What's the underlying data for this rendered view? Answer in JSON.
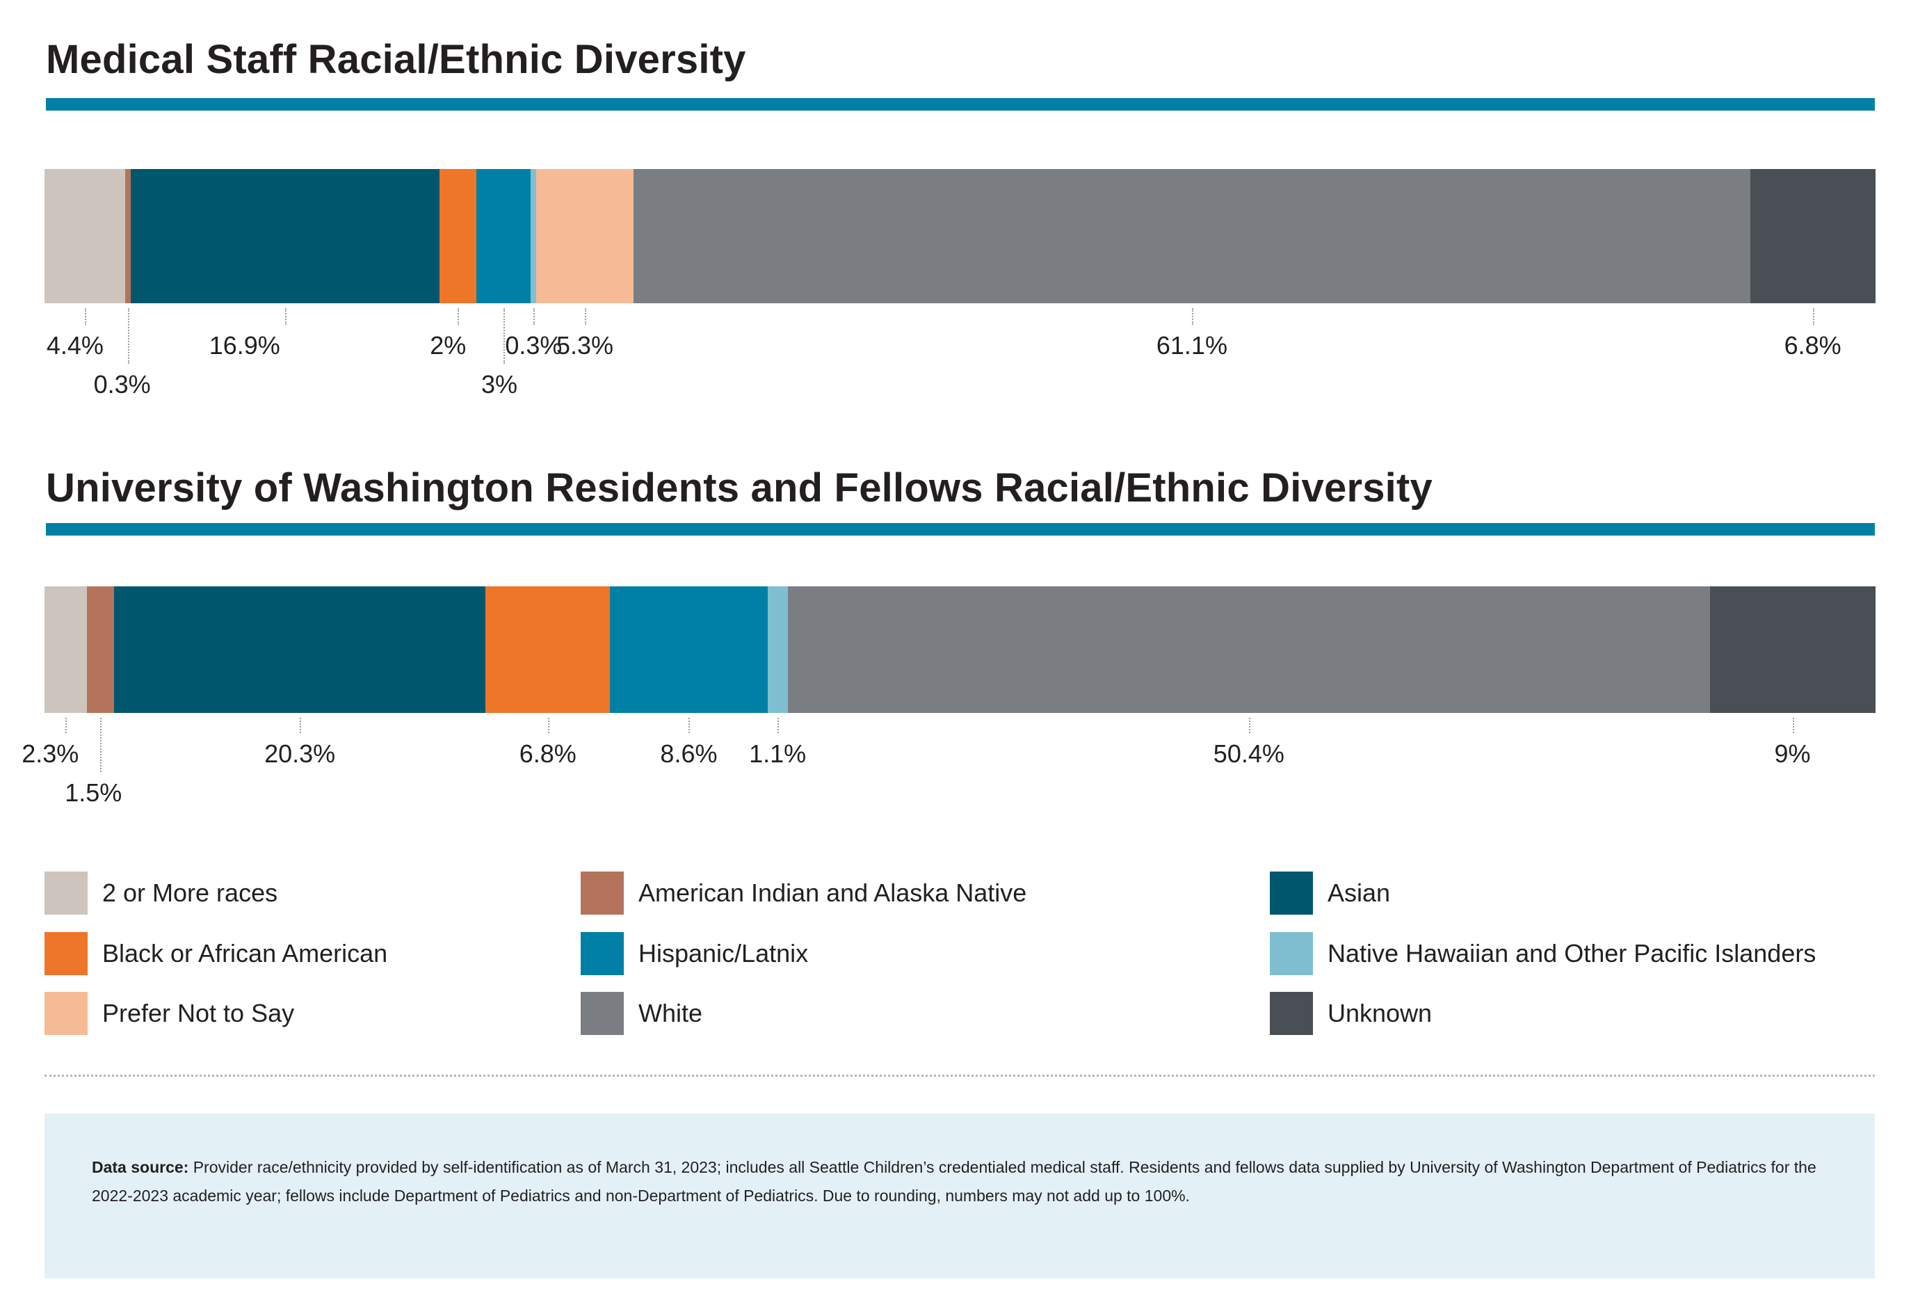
{
  "chart_data": [
    {
      "type": "bar",
      "orientation": "horizontal-stacked-100",
      "title": "Medical Staff Racial/Ethnic Diversity",
      "series": [
        {
          "name": "2 or More races",
          "value": 4.4,
          "label": "4.4%"
        },
        {
          "name": "American Indian and Alaska Native",
          "value": 0.3,
          "label": "0.3%"
        },
        {
          "name": "Asian",
          "value": 16.9,
          "label": "16.9%"
        },
        {
          "name": "Black or African American",
          "value": 2,
          "label": "2%"
        },
        {
          "name": "Hispanic/Latnix",
          "value": 3,
          "label": "3%"
        },
        {
          "name": "Native Hawaiian and Other Pacific Islanders",
          "value": 0.3,
          "label": "0.3%"
        },
        {
          "name": "Prefer Not to Say",
          "value": 5.3,
          "label": "5.3%"
        },
        {
          "name": "White",
          "value": 61.1,
          "label": "61.1%"
        },
        {
          "name": "Unknown",
          "value": 6.8,
          "label": "6.8%"
        }
      ]
    },
    {
      "type": "bar",
      "orientation": "horizontal-stacked-100",
      "title": "University of Washington Residents and Fellows Racial/Ethnic Diversity",
      "series": [
        {
          "name": "2 or More races",
          "value": 2.3,
          "label": "2.3%"
        },
        {
          "name": "American Indian and Alaska Native",
          "value": 1.5,
          "label": "1.5%"
        },
        {
          "name": "Asian",
          "value": 20.3,
          "label": "20.3%"
        },
        {
          "name": "Black or African American",
          "value": 6.8,
          "label": "6.8%"
        },
        {
          "name": "Hispanic/Latnix",
          "value": 8.6,
          "label": "8.6%"
        },
        {
          "name": "Native Hawaiian and Other Pacific Islanders",
          "value": 1.1,
          "label": "1.1%"
        },
        {
          "name": "White",
          "value": 50.4,
          "label": "50.4%"
        },
        {
          "name": "Unknown",
          "value": 9,
          "label": "9%"
        }
      ]
    }
  ],
  "colors": {
    "2 or More races": "#cdc5bd",
    "American Indian and Alaska Native": "#b4745b",
    "Asian": "#00576e",
    "Black or African American": "#ee7628",
    "Hispanic/Latnix": "#0080a5",
    "Native Hawaiian and Other Pacific Islanders": "#80bfd2",
    "Prefer Not to Say": "#f6bb95",
    "White": "#7a7d82",
    "Unknown": "#4a4e55",
    "title_rule": "#0080a5"
  },
  "legend": {
    "placement": "bottom",
    "items": [
      "2 or More races",
      "American Indian and Alaska Native",
      "Asian",
      "Black or African American",
      "Hispanic/Latnix",
      "Native Hawaiian and Other Pacific Islanders",
      "Prefer Not to Say",
      "White",
      "Unknown"
    ]
  },
  "footnote": {
    "label": "Data source:",
    "text": " Provider race/ethnicity provided by self-identification as of March 31, 2023; includes all Seattle Children’s credentialed medical staff. Residents and fellows data supplied by University of Washington Department of Pediatrics for the 2022-2023 academic year; fellows include Department of Pediatrics and non-Department of Pediatrics. Due to rounding, numbers may not add up to 100%."
  }
}
